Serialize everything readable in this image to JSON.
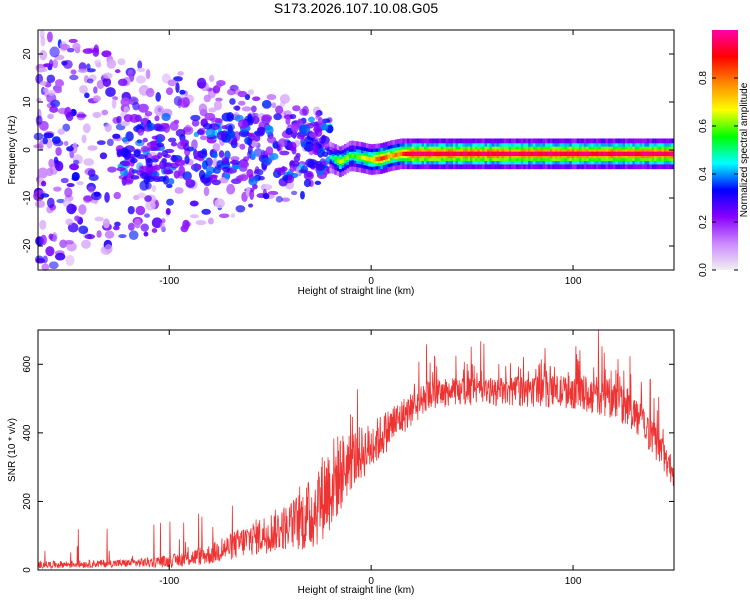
{
  "chart_data": [
    {
      "type": "heatmap",
      "id": "spectrogram",
      "title": "S173.2026.107.10.08.G05",
      "xlabel": "Height of straight line (km)",
      "ylabel": "Frequency (Hz)",
      "xlim": [
        -165,
        150
      ],
      "ylim": [
        -25,
        25
      ],
      "xticks": [
        -100,
        0,
        100
      ],
      "yticks": [
        -20,
        -10,
        0,
        10,
        20
      ],
      "colorbar": {
        "label": "Normalized spectral amplitude",
        "range": [
          0,
          1
        ],
        "ticks": [
          0.0,
          0.2,
          0.4,
          0.6,
          0.8
        ],
        "tick_labels": [
          "0.0",
          "0.2",
          "0.4",
          "0.6",
          "0.8"
        ],
        "colors": [
          "#f0f0f0",
          "#cc88ff",
          "#8800ff",
          "#0000ff",
          "#00ffff",
          "#00ff00",
          "#ffff00",
          "#ff8800",
          "#ff0000",
          "#ff00aa"
        ]
      },
      "ridge": {
        "description": "strong tone near 0 Hz for heights above about -20 km",
        "points": [
          {
            "x": -20,
            "y": -1.5,
            "amp": 0.45
          },
          {
            "x": -15,
            "y": -2.5,
            "amp": 0.7
          },
          {
            "x": -10,
            "y": -1.2,
            "amp": 0.55
          },
          {
            "x": -5,
            "y": -1.5,
            "amp": 0.65
          },
          {
            "x": 0,
            "y": -2.0,
            "amp": 0.7
          },
          {
            "x": 5,
            "y": -1.8,
            "amp": 0.85
          },
          {
            "x": 10,
            "y": -1.2,
            "amp": 0.75
          },
          {
            "x": 15,
            "y": -0.8,
            "amp": 0.8
          },
          {
            "x": 20,
            "y": -0.8,
            "amp": 0.95
          },
          {
            "x": 60,
            "y": -0.8,
            "amp": 0.95
          },
          {
            "x": 100,
            "y": -0.8,
            "amp": 0.95
          },
          {
            "x": 150,
            "y": -0.8,
            "amp": 0.95
          }
        ]
      },
      "noise_region": {
        "x_range": [
          -165,
          -20
        ],
        "y_range": [
          -25,
          25
        ],
        "amp_range": [
          0.05,
          0.35
        ]
      }
    },
    {
      "type": "line",
      "id": "snr",
      "xlabel": "Height of straight line (km)",
      "ylabel": "SNR (10 * v/v)",
      "xlim": [
        -165,
        150
      ],
      "ylim": [
        0,
        700
      ],
      "xticks": [
        -100,
        0,
        100
      ],
      "yticks": [
        0,
        200,
        400,
        600
      ],
      "color": "#ee3333",
      "envelope": {
        "x": [
          -165,
          -120,
          -100,
          -80,
          -60,
          -40,
          -30,
          -20,
          -10,
          0,
          10,
          20,
          30,
          40,
          60,
          80,
          100,
          110,
          120,
          130,
          140,
          150
        ],
        "mean": [
          15,
          20,
          25,
          45,
          90,
          130,
          160,
          250,
          320,
          360,
          420,
          470,
          510,
          520,
          520,
          520,
          520,
          510,
          500,
          460,
          380,
          280
        ],
        "noise": [
          10,
          12,
          18,
          30,
          50,
          70,
          110,
          140,
          90,
          70,
          60,
          50,
          45,
          40,
          40,
          45,
          50,
          55,
          60,
          55,
          50,
          40
        ]
      }
    }
  ]
}
